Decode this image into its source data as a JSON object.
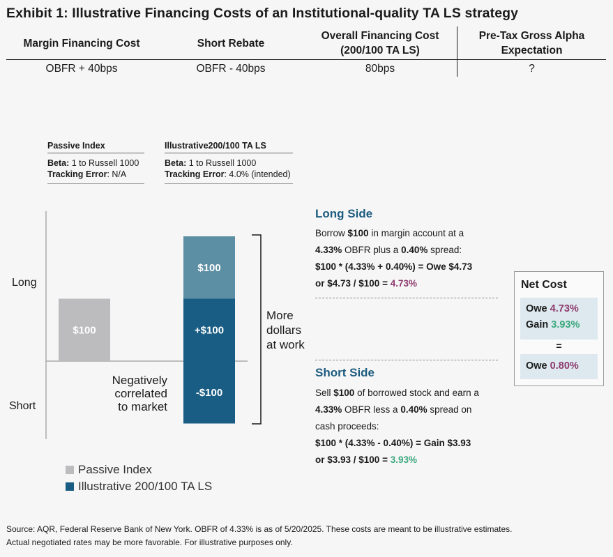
{
  "title": "Exhibit 1: Illustrative Financing Costs of an Institutional-quality TA LS strategy",
  "table": {
    "headers": [
      "Margin Financing Cost",
      "Short Rebate",
      "Overall Financing Cost (200/100 TA LS)",
      "Pre-Tax Gross Alpha Expectation"
    ],
    "header_lines": [
      [
        "Margin Financing Cost"
      ],
      [
        "Short Rebate"
      ],
      [
        "Overall Financing Cost",
        "(200/100 TA LS)"
      ],
      [
        "Pre-Tax Gross Alpha",
        "Expectation"
      ]
    ],
    "row": [
      "OBFR + 40bps",
      "OBFR - 40bps",
      "80bps",
      "?"
    ]
  },
  "info_boxes": {
    "passive": {
      "title": "Passive Index",
      "beta_label": "Beta:",
      "beta_value": " 1 to Russell 1000",
      "te_label": "Tracking Error",
      "te_value": ": N/A"
    },
    "tals": {
      "title": "Illustrative200/100 TA LS",
      "beta_label": "Beta:",
      "beta_value": " 1 to Russell 1000",
      "te_label": "Tracking Error",
      "te_value": ": 4.0% (intended)"
    }
  },
  "chart_data": {
    "type": "bar",
    "title": "",
    "axis_labels": {
      "top": "Long",
      "bottom": "Short"
    },
    "series": [
      {
        "name": "Passive Index",
        "color": "#bcbcbe",
        "segments": [
          {
            "value": 100,
            "label": "$100"
          }
        ]
      },
      {
        "name": "Illustrative 200/100 TA LS",
        "color": "#1a5d84",
        "segments": [
          {
            "value": 100,
            "label": "+$100",
            "color": "#1a5d84"
          },
          {
            "value": 100,
            "label": "$100",
            "color": "#5d8fa4"
          },
          {
            "value": -100,
            "label": "-$100",
            "color": "#1a5d84"
          }
        ]
      }
    ],
    "ylim": [
      -100,
      200
    ],
    "annotations": {
      "bracket": [
        "More",
        "dollars",
        "at work"
      ],
      "negative": [
        "Negatively",
        "correlated",
        "to market"
      ]
    },
    "legend": [
      {
        "label": "Passive Index",
        "color": "#bcbcbe"
      },
      {
        "label": "Illustrative 200/100 TA LS",
        "color": "#1a5d84"
      }
    ]
  },
  "long_side": {
    "header": "Long Side",
    "l1a": "Borrow ",
    "l1b": "$100",
    "l1c": " in margin account at a",
    "l2a": "4.33%",
    "l2b": " OBFR plus a ",
    "l2c": "0.40%",
    "l2d": " spread:",
    "l3": "$100 * (4.33% + 0.40%) = Owe $4.73",
    "l4a": "or $4.73 / $100 = ",
    "l4b": "4.73%"
  },
  "short_side": {
    "header": "Short Side",
    "l1a": "Sell ",
    "l1b": "$100",
    "l1c": " of borrowed stock and earn a",
    "l2a": "4.33%",
    "l2b": " OBFR less a ",
    "l2c": "0.40%",
    "l2d": " spread on",
    "l3": "cash proceeds:",
    "l4": "$100 * (4.33% - 0.40%) = Gain $3.93",
    "l5a": "or $3.93 / $100 = ",
    "l5b": "3.93%"
  },
  "net_cost": {
    "title": "Net Cost",
    "owe_label": "Owe ",
    "owe_value": "4.73%",
    "gain_label": "Gain ",
    "gain_value": "3.93%",
    "equals": "=",
    "net_label": "Owe ",
    "net_value": "0.80%"
  },
  "source": {
    "line1": "Source: AQR, Federal Reserve Bank of New York. OBFR of 4.33% is as of 5/20/2025. These costs are meant to be illustrative estimates.",
    "line2": "Actual negotiated rates may be more favorable. For illustrative purposes only."
  },
  "colors": {
    "owe": "#8e3a6e",
    "gain": "#3aa87c",
    "navy": "#1a5d84",
    "teal": "#5d8fa4",
    "grey": "#bcbcbe",
    "header_blue": "#1d5b7f"
  }
}
